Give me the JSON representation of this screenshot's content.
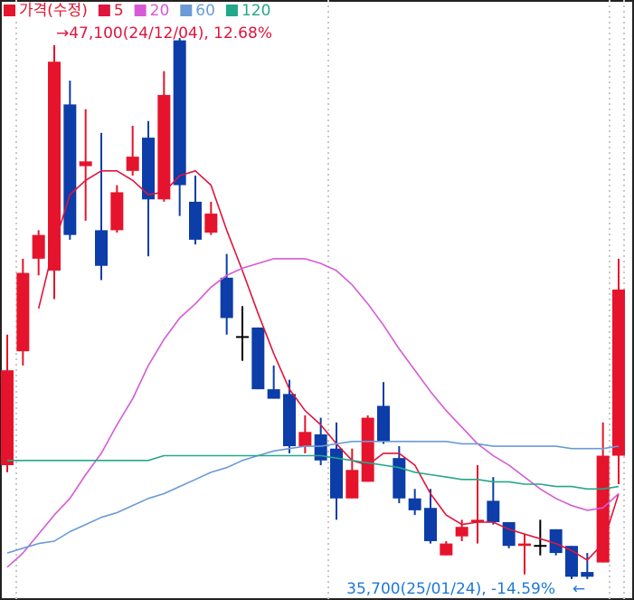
{
  "chart_data": {
    "type": "candlestick",
    "candles": {
      "name": "가격(수정)",
      "up_color": "#e5142c",
      "down_color": "#0c3da8",
      "flat_color": "#000000",
      "open": [
        38100,
        40500,
        42450,
        42200,
        45700,
        44400,
        43050,
        43050,
        44300,
        45000,
        43700,
        47050,
        43650,
        43000,
        42050,
        40800,
        41000,
        39700,
        39600,
        38500,
        38750,
        38450,
        37400,
        37750,
        39350,
        38250,
        37400,
        37200,
        36200,
        36600,
        36900,
        37350,
        36900,
        36400,
        36400,
        36750,
        36400,
        35850,
        36050,
        38300
      ],
      "high": [
        40850,
        42450,
        43050,
        46950,
        46200,
        45600,
        45100,
        44000,
        45250,
        45350,
        46400,
        47100,
        44200,
        43650,
        42550,
        41450,
        41000,
        40200,
        39900,
        39150,
        39100,
        39000,
        38450,
        39150,
        39850,
        38500,
        37600,
        37600,
        36500,
        36950,
        38100,
        37850,
        36900,
        36650,
        36950,
        36750,
        36400,
        36250,
        39000,
        42450
      ],
      "low": [
        37950,
        40200,
        42100,
        41600,
        42850,
        43250,
        42000,
        43000,
        44200,
        42500,
        43650,
        43350,
        42750,
        42950,
        40850,
        40300,
        39700,
        39500,
        38350,
        38350,
        38100,
        36950,
        37400,
        37750,
        38550,
        37300,
        37050,
        36450,
        36200,
        36500,
        36450,
        36850,
        36350,
        35800,
        36200,
        36200,
        35700,
        35700,
        36050,
        37700
      ],
      "close": [
        40100,
        42150,
        42950,
        46600,
        42950,
        44500,
        42300,
        43850,
        44600,
        43700,
        45900,
        44000,
        42850,
        43400,
        41200,
        40800,
        39700,
        39500,
        38500,
        38800,
        38200,
        37400,
        38000,
        39100,
        38600,
        37400,
        37150,
        36500,
        36450,
        36800,
        36950,
        36900,
        36400,
        36450,
        36400,
        36250,
        35750,
        35750,
        38300,
        41800
      ]
    },
    "lines": [
      {
        "name": "5",
        "color": "#e0143c",
        "values": [
          null,
          null,
          41400,
          42750,
          43800,
          44100,
          44300,
          44300,
          44100,
          43800,
          43850,
          44200,
          44300,
          44000,
          43050,
          42200,
          41300,
          40450,
          39700,
          39250,
          38950,
          38550,
          38200,
          38100,
          38350,
          38350,
          38100,
          37500,
          37050,
          36850,
          36900,
          36900,
          36750,
          36650,
          36550,
          36450,
          36300,
          36100,
          36450,
          37500
        ]
      },
      {
        "name": "20",
        "color": "#d65ad6",
        "values": [
          35950,
          36250,
          36650,
          37050,
          37400,
          37900,
          38350,
          38950,
          39500,
          40200,
          40750,
          41200,
          41500,
          41850,
          42100,
          42250,
          42350,
          42450,
          42450,
          42450,
          42350,
          42200,
          41900,
          41500,
          41050,
          40550,
          40100,
          39650,
          39250,
          38900,
          38550,
          38300,
          38100,
          37850,
          37600,
          37400,
          37250,
          37150,
          37200,
          37500
        ]
      },
      {
        "name": "60",
        "color": "#6a9bd6",
        "values": [
          36250,
          36350,
          36450,
          36500,
          36700,
          36850,
          37000,
          37100,
          37250,
          37400,
          37500,
          37650,
          37800,
          37950,
          38050,
          38200,
          38300,
          38400,
          38450,
          38500,
          38500,
          38550,
          38600,
          38600,
          38600,
          38600,
          38600,
          38600,
          38600,
          38550,
          38550,
          38500,
          38500,
          38500,
          38500,
          38500,
          38450,
          38450,
          38450,
          38500
        ]
      },
      {
        "name": "120",
        "color": "#22a889",
        "values": [
          38200,
          38200,
          38200,
          38200,
          38200,
          38200,
          38200,
          38200,
          38200,
          38200,
          38300,
          38300,
          38300,
          38300,
          38300,
          38300,
          38300,
          38300,
          38300,
          38300,
          38300,
          38250,
          38200,
          38150,
          38100,
          38050,
          37950,
          37900,
          37850,
          37800,
          37800,
          37750,
          37750,
          37700,
          37700,
          37650,
          37650,
          37600,
          37600,
          37650
        ]
      }
    ],
    "ylim": [
      35260,
      47900
    ],
    "annotations": [
      {
        "text": "→47,100(24/12/04), 12.68%",
        "color": "#e0143c"
      },
      {
        "text": "35,700(25/01/24), -14.59%",
        "color": "#1e78d8"
      },
      {
        "text": "←",
        "color": "#1e78d8"
      }
    ]
  }
}
